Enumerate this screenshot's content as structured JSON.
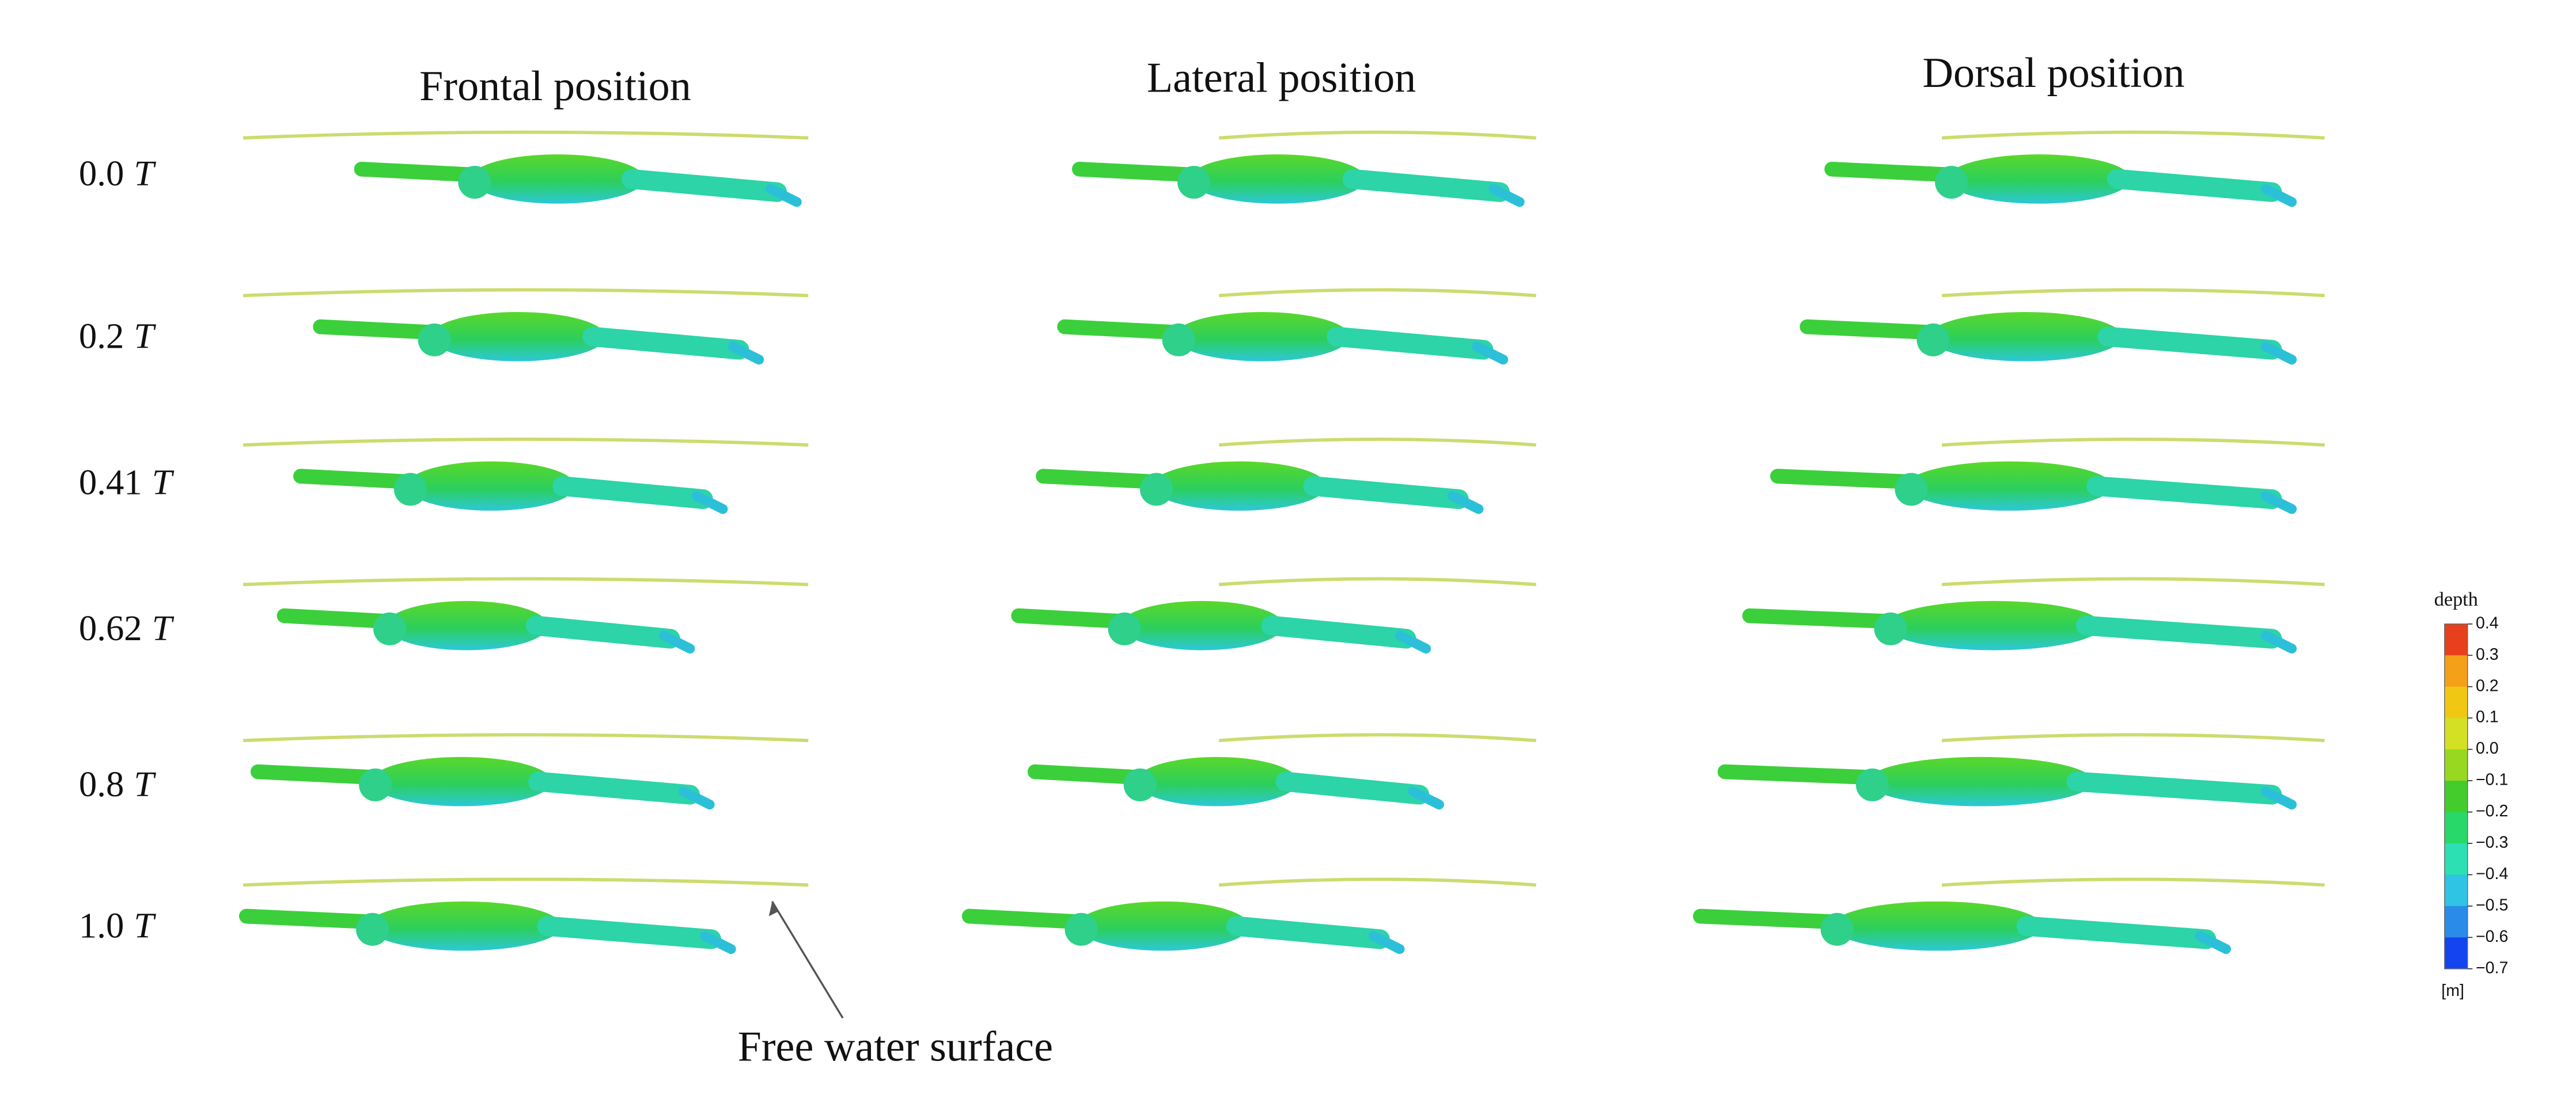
{
  "headers": [
    "Frontal position",
    "Lateral position",
    "Dorsal position"
  ],
  "rows": [
    {
      "value": "0.0",
      "unit": "T"
    },
    {
      "value": "0.2",
      "unit": "T"
    },
    {
      "value": "0.41",
      "unit": "T"
    },
    {
      "value": "0.62",
      "unit": "T"
    },
    {
      "value": "0.8",
      "unit": "T"
    },
    {
      "value": "1.0",
      "unit": "T"
    }
  ],
  "annotation": "Free water surface",
  "colorbar": {
    "title": "depth",
    "unit": "[m]",
    "lim": [
      -0.7,
      0.4
    ],
    "ticks": [
      {
        "value": 0.4,
        "label": "0.4"
      },
      {
        "value": 0.3,
        "label": "0.3"
      },
      {
        "value": 0.2,
        "label": "0.2"
      },
      {
        "value": 0.1,
        "label": "0.1"
      },
      {
        "value": 0,
        "label": "0.0"
      },
      {
        "value": -0.1,
        "label": "−0.1"
      },
      {
        "value": -0.2,
        "label": "−0.2"
      },
      {
        "value": -0.3,
        "label": "−0.3"
      },
      {
        "value": -0.4,
        "label": "−0.4"
      },
      {
        "value": -0.5,
        "label": "−0.5"
      },
      {
        "value": -0.6,
        "label": "−0.6"
      },
      {
        "value": -0.7,
        "label": "−0.7"
      }
    ],
    "colors": [
      "#e8401c",
      "#f4a018",
      "#f0c814",
      "#d4e024",
      "#98d820",
      "#44cc2c",
      "#28d868",
      "#2ce0b4",
      "#30c4e4",
      "#2a8ce8",
      "#1444f0"
    ]
  }
}
